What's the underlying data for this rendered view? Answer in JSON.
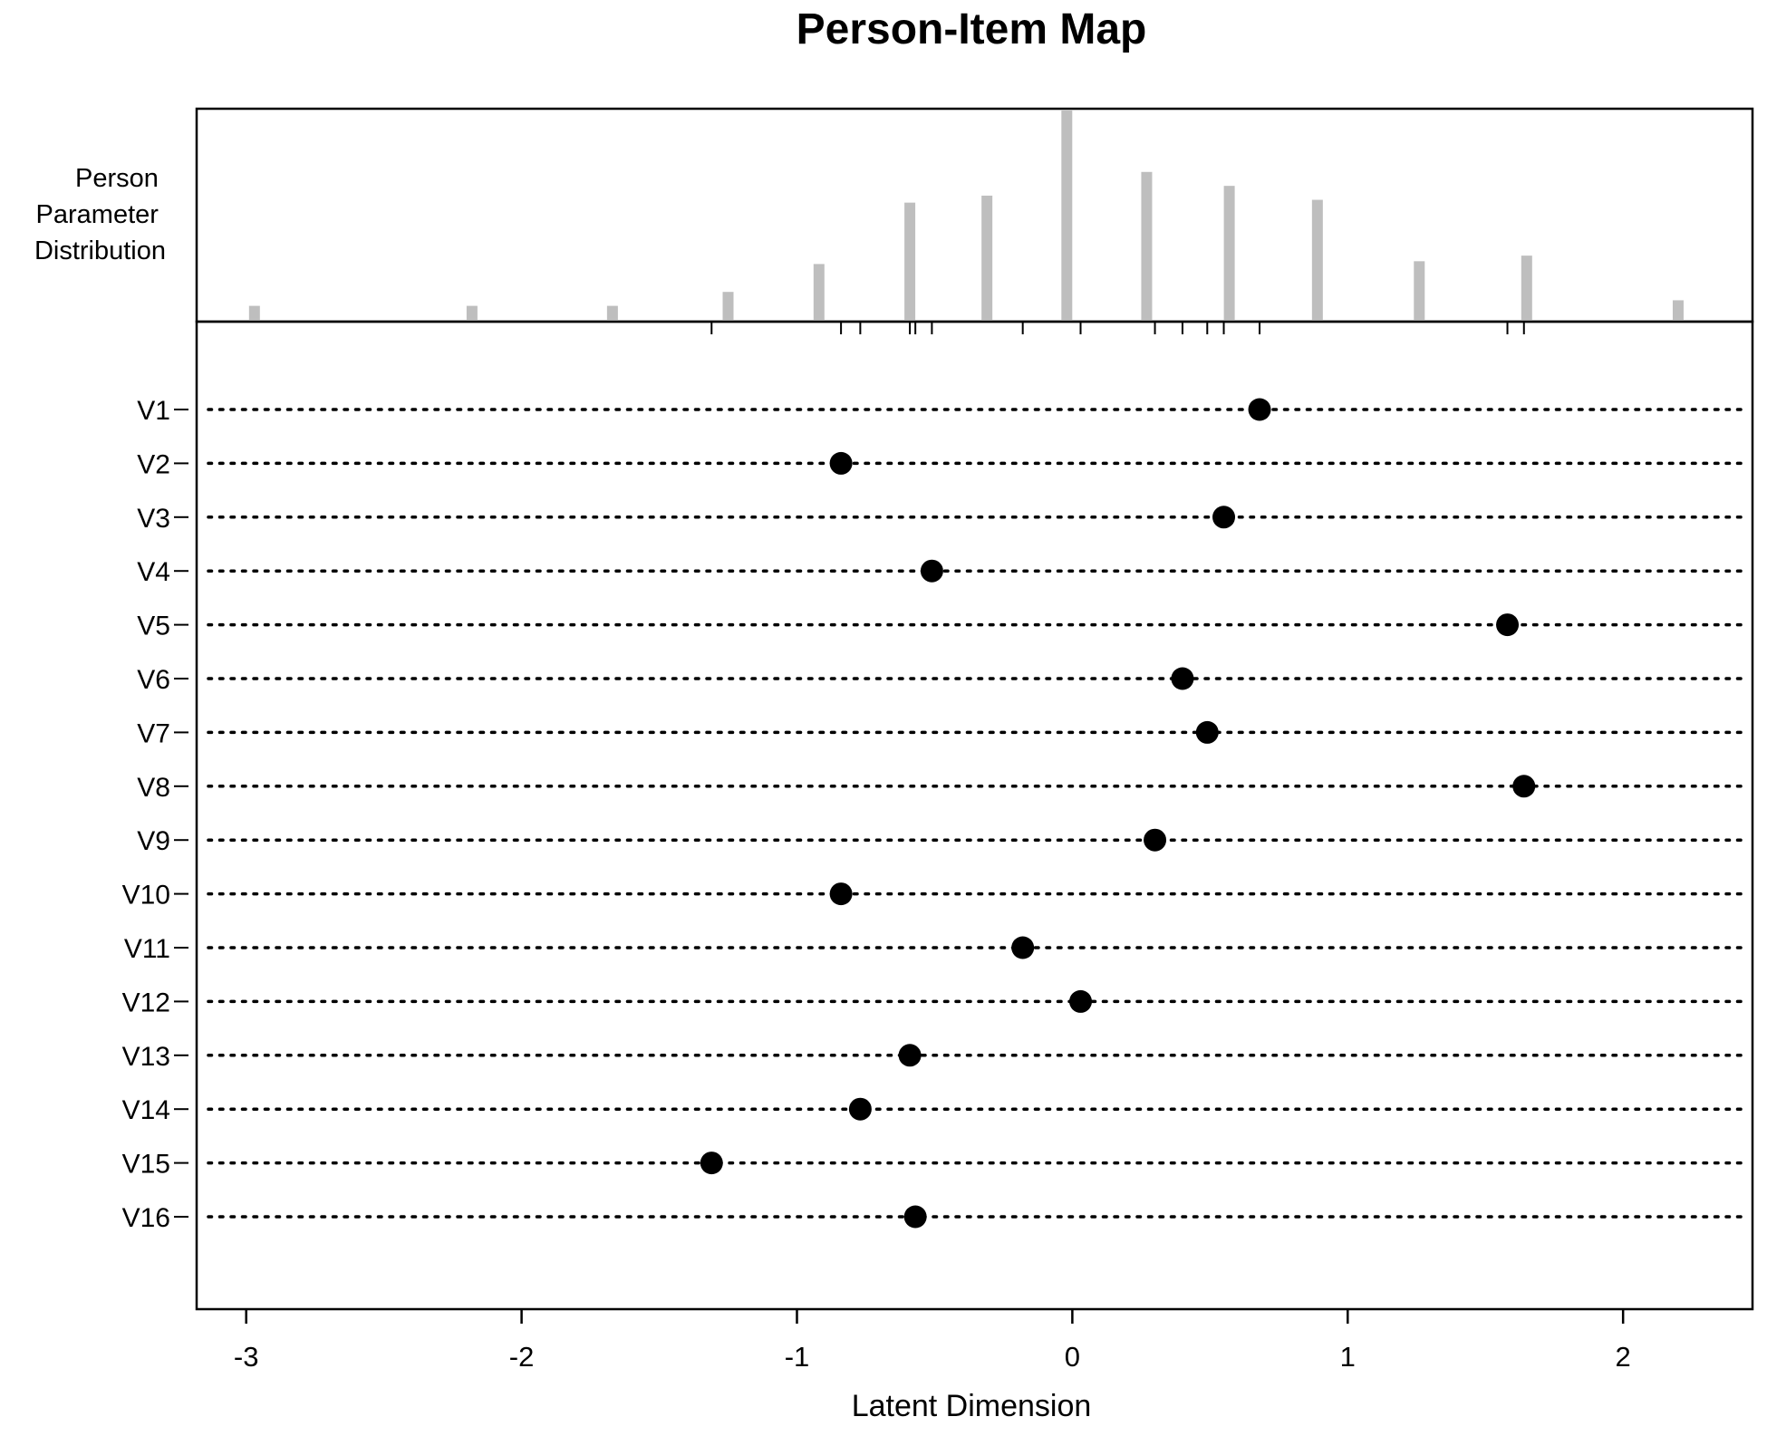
{
  "chart_data": {
    "type": "scatter",
    "title": "Person-Item Map",
    "xlabel": "Latent Dimension",
    "xlim": [
      -3.18,
      2.47
    ],
    "x_ticks": [
      -3,
      -2,
      -1,
      0,
      1,
      2
    ],
    "x_tick_labels": [
      "-3",
      "-2",
      "-1",
      "0",
      "1",
      "2"
    ],
    "grid": false,
    "person_distribution": {
      "label_lines": [
        "Person",
        "Parameter",
        "Distribution"
      ],
      "x": [
        -2.97,
        -2.18,
        -1.67,
        -1.25,
        -0.92,
        -0.59,
        -0.31,
        -0.02,
        0.27,
        0.57,
        0.89,
        1.26,
        1.65,
        2.2
      ],
      "counts": [
        1,
        1,
        1,
        2,
        4,
        8.4,
        8.9,
        15,
        10.6,
        9.6,
        8.6,
        4.2,
        4.6,
        1.4
      ],
      "color": "#bebebe"
    },
    "items": {
      "labels": [
        "V1",
        "V2",
        "V3",
        "V4",
        "V5",
        "V6",
        "V7",
        "V8",
        "V9",
        "V10",
        "V11",
        "V12",
        "V13",
        "V14",
        "V15",
        "V16"
      ],
      "difficulty": [
        0.68,
        -0.84,
        0.55,
        -0.51,
        1.58,
        0.4,
        0.49,
        1.64,
        0.3,
        -0.84,
        -0.18,
        0.03,
        -0.59,
        -0.77,
        -1.31,
        -0.57
      ]
    },
    "top_axis_ticks": [
      -1.31,
      -0.84,
      -0.77,
      -0.59,
      -0.57,
      -0.51,
      -0.18,
      0.03,
      0.3,
      0.4,
      0.49,
      0.55,
      0.68,
      1.58,
      1.64
    ]
  }
}
